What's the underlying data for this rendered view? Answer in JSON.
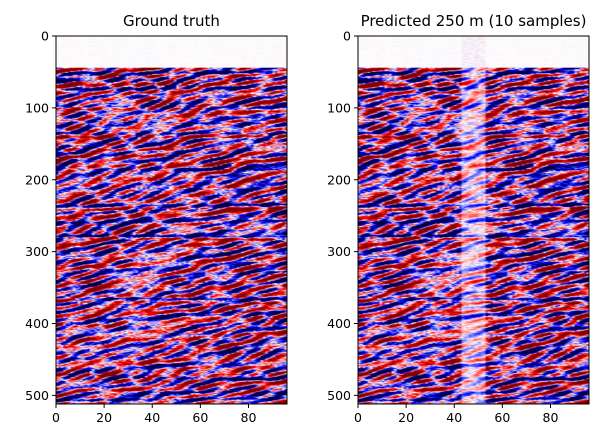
{
  "chart_data": [
    {
      "type": "heatmap",
      "title": "Ground truth",
      "xlabel": "",
      "ylabel": "",
      "xlim": [
        0,
        96
      ],
      "ylim": [
        512,
        0
      ],
      "x_ticks": [
        0,
        20,
        40,
        60,
        80
      ],
      "y_ticks": [
        0,
        100,
        200,
        300,
        400,
        500
      ],
      "colormap": "seismic",
      "notes_visible": "seismic section; near-zero amplitude above ~45 samples, strong dark reflectors near 50–75, 100, 135, 160, 235, 270–280, 365, 475, 505"
    },
    {
      "type": "heatmap",
      "title": "Predicted 250 m (10 samples)",
      "xlabel": "",
      "ylabel": "",
      "xlim": [
        0,
        96
      ],
      "ylim": [
        512,
        0
      ],
      "x_ticks": [
        0,
        20,
        40,
        60,
        80
      ],
      "y_ticks": [
        0,
        100,
        200,
        300,
        400,
        500
      ],
      "colormap": "seismic",
      "gap_columns": [
        43,
        52
      ]
    }
  ],
  "colors": {
    "negative": "#00004c",
    "zero": "#ffffff",
    "positive": "#800000",
    "mid_blue": "#3030ff",
    "mid_red": "#ff3030"
  }
}
